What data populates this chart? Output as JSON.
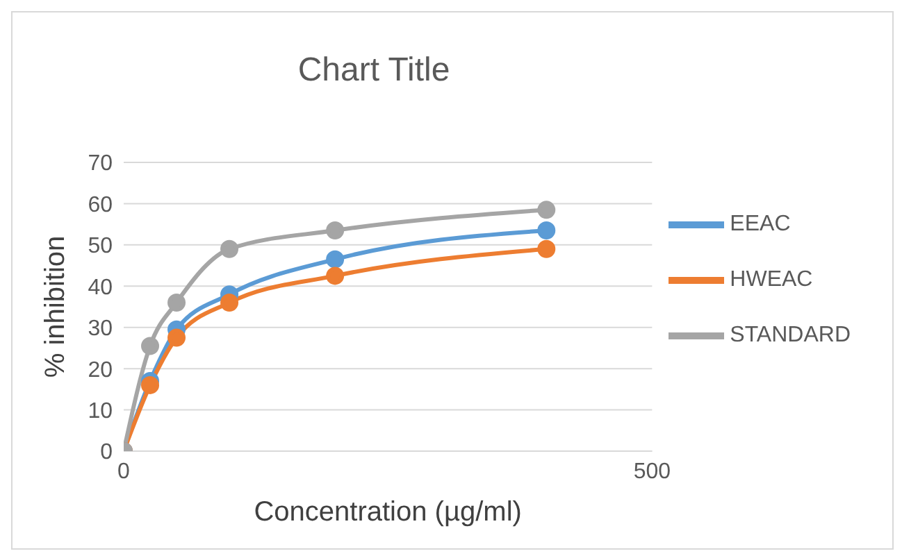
{
  "chart_data": {
    "type": "line",
    "title": "Chart Title",
    "xlabel": "Concentration (µg/ml)",
    "ylabel": "% inhibition",
    "x": [
      0,
      25,
      50,
      100,
      200,
      400
    ],
    "series": [
      {
        "name": "EEAC",
        "color": "#5b9bd5",
        "values": [
          0,
          17,
          29.5,
          38,
          46.5,
          53.5
        ]
      },
      {
        "name": "HWEAC",
        "color": "#ed7d31",
        "values": [
          0,
          16,
          27.5,
          36,
          42.5,
          49
        ]
      },
      {
        "name": "STANDARD",
        "color": "#a5a5a5",
        "values": [
          0,
          25.5,
          36,
          49,
          53.5,
          58.5
        ]
      }
    ],
    "xlim": [
      0,
      500
    ],
    "xticks": [
      0,
      500
    ],
    "ylim": [
      0,
      70
    ],
    "yticks": [
      0,
      10,
      20,
      30,
      40,
      50,
      60,
      70
    ],
    "grid": "y",
    "legend": "right",
    "marker": "circle",
    "line_style": "solid"
  }
}
